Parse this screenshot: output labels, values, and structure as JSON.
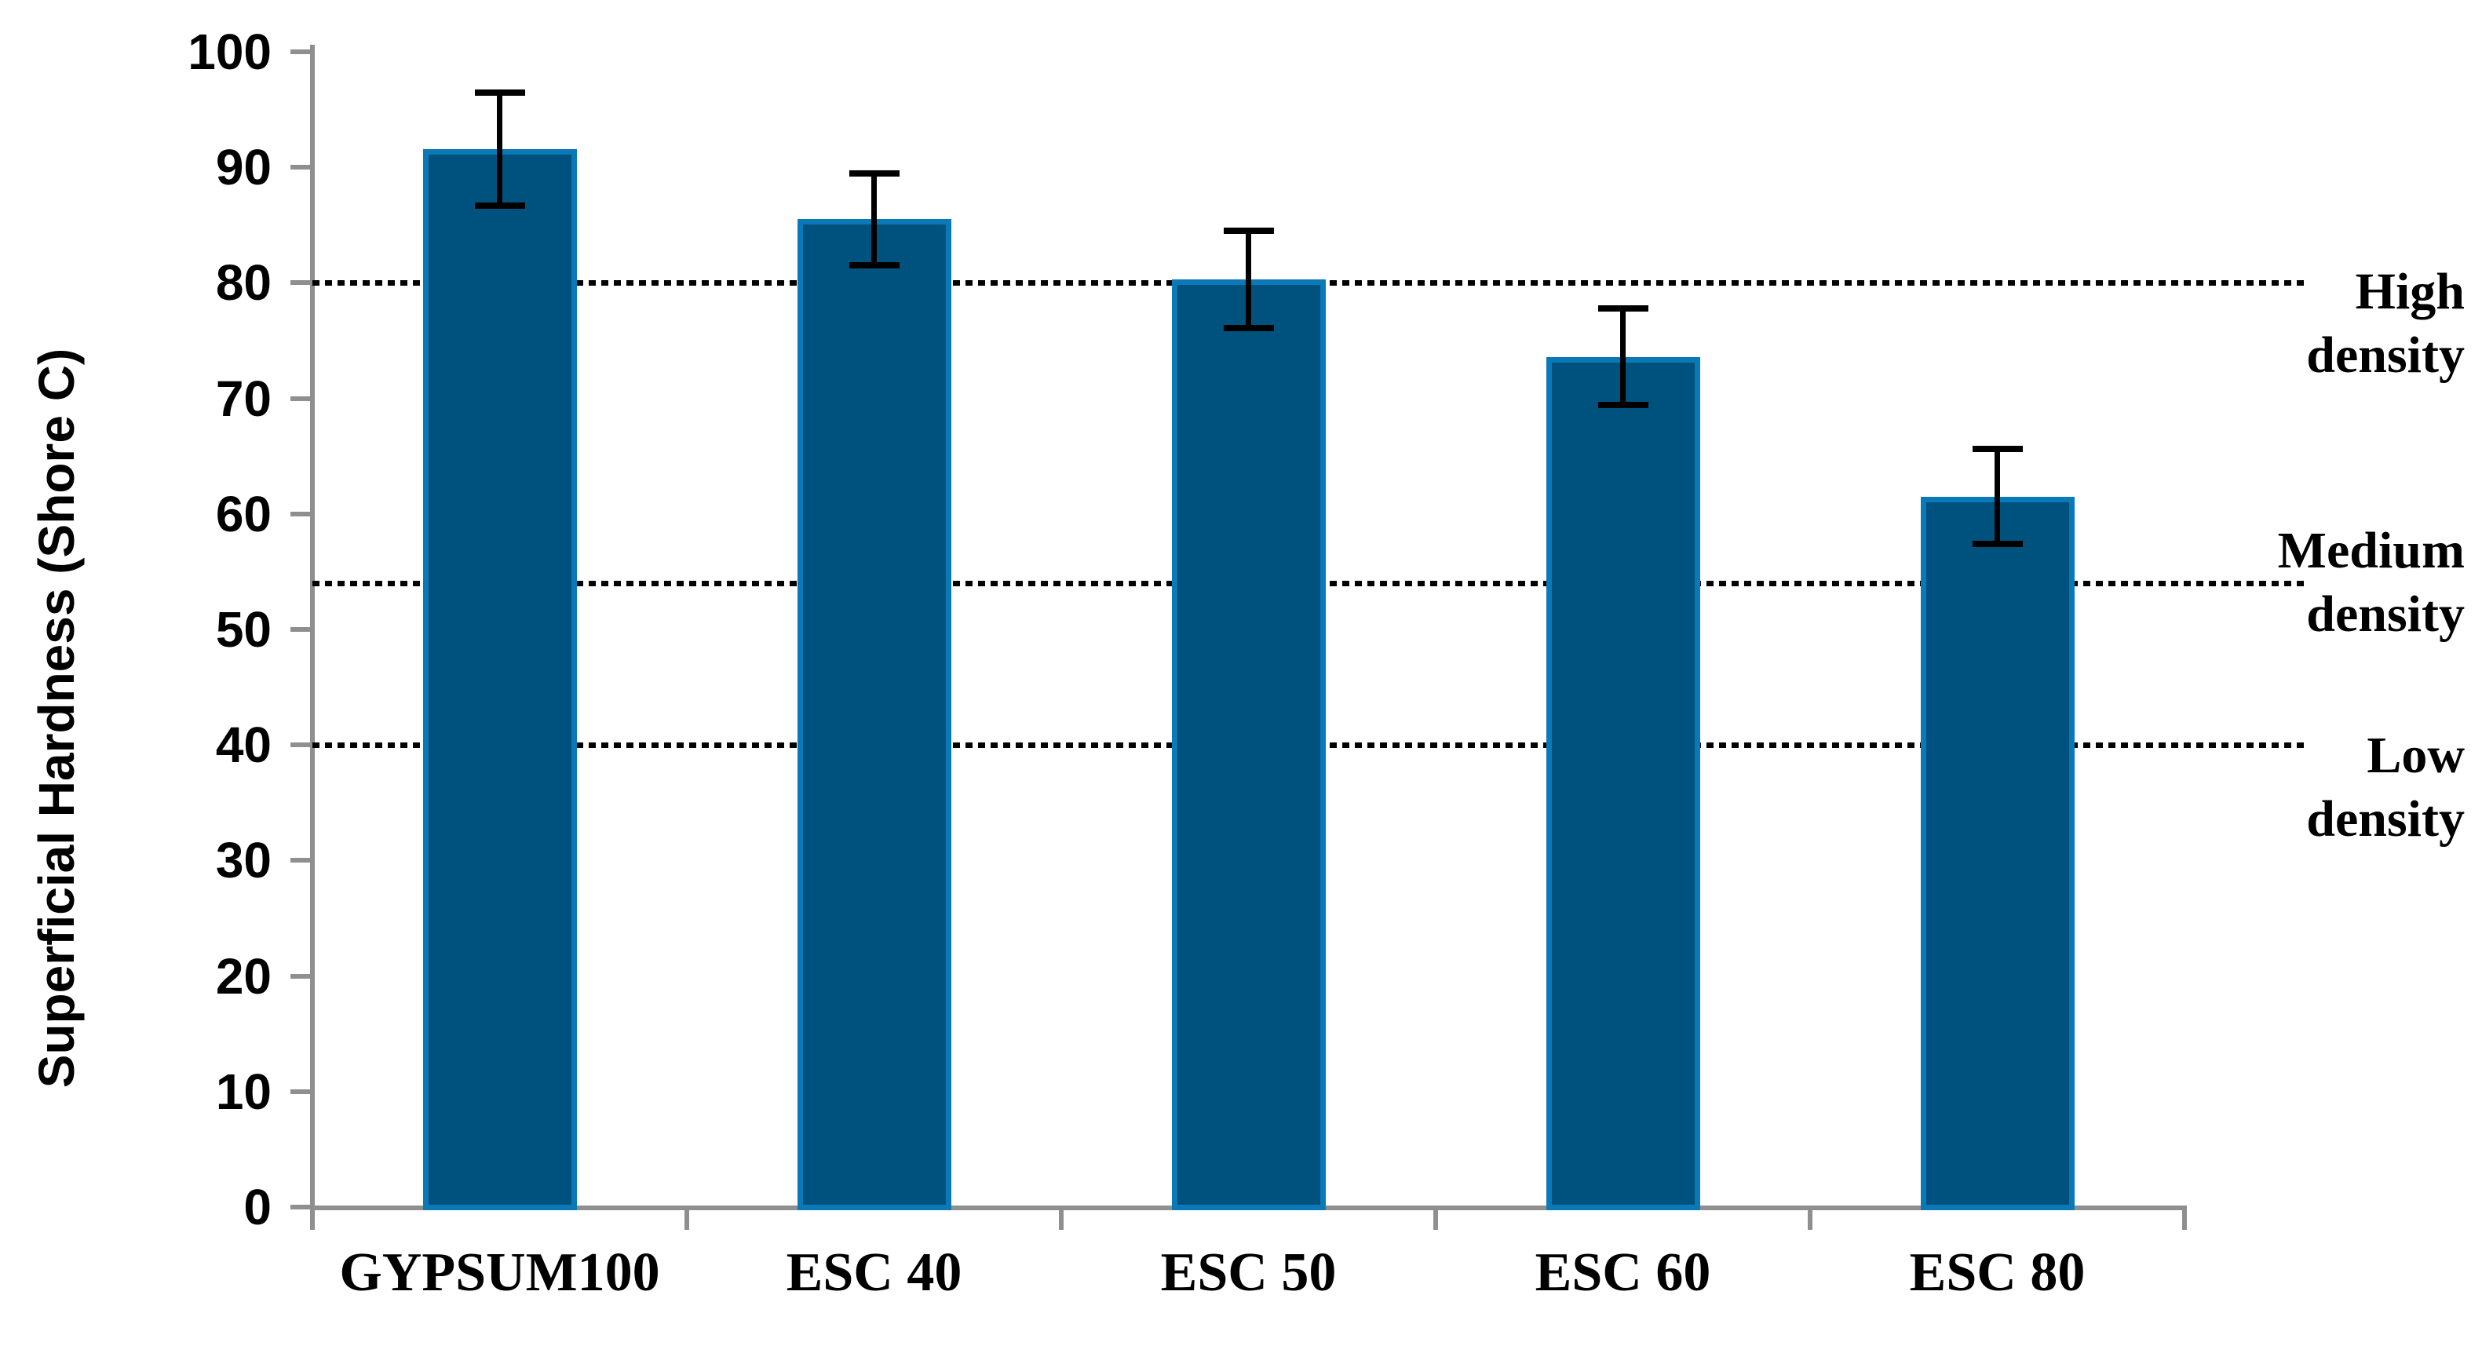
{
  "chart_data": {
    "type": "bar",
    "categories": [
      "GYPSUM100",
      "ESC 40",
      "ESC 50",
      "ESC 60",
      "ESC 80"
    ],
    "values": [
      91.6,
      85.5,
      80.3,
      73.6,
      61.5
    ],
    "error_bars": [
      4.9,
      4.0,
      4.2,
      4.2,
      4.1
    ],
    "title": "",
    "xlabel": "",
    "ylabel": "Superficial Hardness (Shore C)",
    "ylim": [
      0,
      100
    ],
    "yticks": [
      0,
      10,
      20,
      30,
      40,
      50,
      60,
      70,
      80,
      90,
      100
    ],
    "grid": "off",
    "legend": "none",
    "reference_lines": [
      {
        "label": "High density",
        "value": 80
      },
      {
        "label": "Medium density",
        "value": 54
      },
      {
        "label": "Low density",
        "value": 40
      }
    ],
    "colors": {
      "bar_fill": "#00527E",
      "bar_border": "#0B79B7",
      "axis": "#8F8F8F",
      "text": "#000000",
      "reference_line": "#000000"
    }
  }
}
